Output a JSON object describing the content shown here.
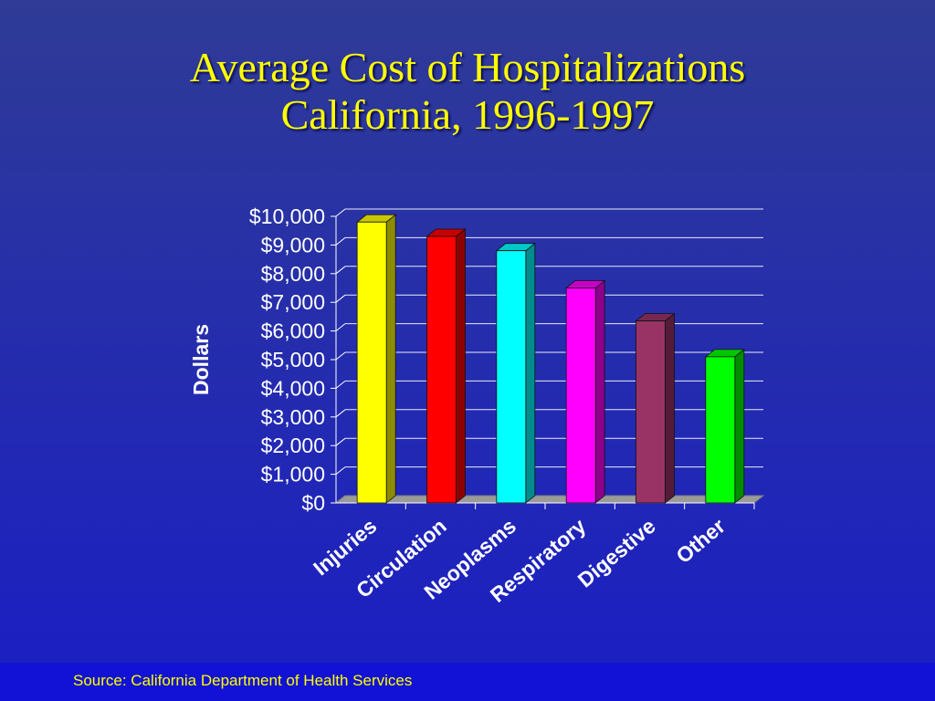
{
  "title_line1": "Average Cost of Hospitalizations",
  "title_line2": "California, 1996-1997",
  "source": "Source: California Department of Health Services",
  "chart_data": {
    "type": "bar",
    "title": "Average Cost of Hospitalizations California, 1996-1997",
    "ylabel": "Dollars",
    "xlabel": "",
    "ylim": [
      0,
      10000
    ],
    "yticks": [
      0,
      1000,
      2000,
      3000,
      4000,
      5000,
      6000,
      7000,
      8000,
      9000,
      10000
    ],
    "ytick_labels": [
      "$0",
      "$1,000",
      "$2,000",
      "$3,000",
      "$4,000",
      "$5,000",
      "$6,000",
      "$7,000",
      "$8,000",
      "$9,000",
      "$10,000"
    ],
    "categories": [
      "Injuries",
      "Circulation",
      "Neoplasms",
      "Respiratory",
      "Digestive",
      "Other"
    ],
    "values": [
      9800,
      9300,
      8800,
      7500,
      6350,
      5100
    ],
    "colors": [
      "#ffff00",
      "#ff0000",
      "#00ffff",
      "#ff00ff",
      "#993366",
      "#00ff00"
    ],
    "grid": true,
    "legend": "none",
    "style": "3d-bar"
  }
}
